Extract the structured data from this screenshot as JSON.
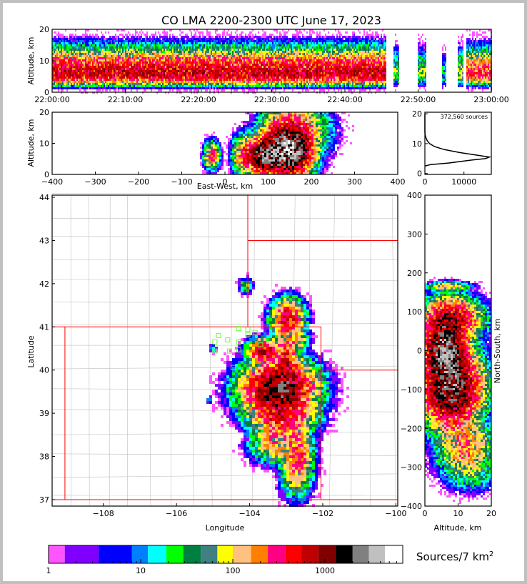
{
  "chart_data": {
    "type": "heatmap",
    "title": "CO LMA 2200-2300 UTC June 17, 2023",
    "time_panel": {
      "ylabel": "Altitude, km",
      "ylim": [
        0,
        20
      ],
      "yticks": [
        "0",
        "10",
        "20"
      ],
      "xticks": [
        "22:00:00",
        "22:10:00",
        "22:20:00",
        "22:30:00",
        "22:40:00",
        "22:50:00",
        "23:00:00"
      ],
      "xlim_minutes": [
        0,
        60
      ],
      "segments": [
        {
          "t0": 0,
          "t1": 45.5,
          "alt": 6,
          "peak": 600
        },
        {
          "t0": 46.6,
          "t1": 47.3,
          "alt": 6,
          "peak": 60
        },
        {
          "t0": 49.8,
          "t1": 51,
          "alt": 6,
          "peak": 60
        },
        {
          "t0": 53.2,
          "t1": 53.8,
          "alt": 5,
          "peak": 20
        },
        {
          "t0": 55.3,
          "t1": 56,
          "alt": 6,
          "peak": 80
        },
        {
          "t0": 56.5,
          "t1": 60,
          "alt": 6,
          "peak": 300
        }
      ]
    },
    "ew_panel": {
      "xlabel": "East-West, km",
      "ylabel": "Altitude, km",
      "xlim": [
        -400,
        400
      ],
      "ylim": [
        0,
        20
      ],
      "xticks": [
        "−400",
        "−300",
        "−200",
        "−100",
        "0",
        "100",
        "200",
        "300",
        "400"
      ],
      "yticks": [
        "0",
        "10",
        "20"
      ],
      "clusters": [
        {
          "x": -30,
          "y": 6,
          "sx": 8,
          "sy": 2,
          "peak": 300
        },
        {
          "x": 45,
          "y": 6,
          "sx": 12,
          "sy": 3,
          "peak": 300
        },
        {
          "x": 90,
          "y": 6,
          "sx": 18,
          "sy": 2.5,
          "peak": 2500
        },
        {
          "x": 145,
          "y": 8,
          "sx": 25,
          "sy": 4,
          "peak": 3500
        },
        {
          "x": 160,
          "y": 14,
          "sx": 35,
          "sy": 4,
          "peak": 250
        }
      ]
    },
    "histogram": {
      "annotation": "372,560 sources",
      "xlim": [
        0,
        17000
      ],
      "ylim": [
        0,
        20
      ],
      "xticks": [
        "0",
        "10000"
      ],
      "yticks": [
        "0",
        "10",
        "20"
      ],
      "alt": [
        2.5,
        3,
        3.5,
        4,
        4.5,
        5,
        5.5,
        6,
        7,
        8,
        9,
        10,
        11,
        12,
        13,
        14,
        20
      ],
      "count": [
        0,
        1500,
        6000,
        9000,
        12000,
        15500,
        16500,
        14000,
        9000,
        5000,
        2500,
        1200,
        600,
        250,
        60,
        0,
        0
      ]
    },
    "plan_panel": {
      "xlabel": "Longitude",
      "ylabel": "Latitude",
      "xlim": [
        -109.4,
        -99.95
      ],
      "ylim": [
        36.85,
        44.05
      ],
      "xticks": [
        "−108",
        "−106",
        "−104",
        "−102",
        "−100"
      ],
      "yticks": [
        "37",
        "38",
        "39",
        "40",
        "41",
        "42",
        "43",
        "44"
      ],
      "clusters": [
        {
          "x": -104.1,
          "y": 41.95,
          "sx": 0.08,
          "sy": 0.08,
          "peak": 80
        },
        {
          "x": -102.95,
          "y": 41.2,
          "sx": 0.2,
          "sy": 0.2,
          "peak": 600
        },
        {
          "x": -103.6,
          "y": 40.45,
          "sx": 0.2,
          "sy": 0.12,
          "peak": 800
        },
        {
          "x": -103.0,
          "y": 40.2,
          "sx": 0.15,
          "sy": 0.3,
          "peak": 500
        },
        {
          "x": -103.2,
          "y": 39.55,
          "sx": 0.45,
          "sy": 0.3,
          "peak": 1500
        },
        {
          "x": -103.1,
          "y": 38.9,
          "sx": 0.4,
          "sy": 0.2,
          "peak": 400
        },
        {
          "x": -103.3,
          "y": 38.3,
          "sx": 0.3,
          "sy": 0.2,
          "peak": 200
        },
        {
          "x": -102.7,
          "y": 38.0,
          "sx": 0.2,
          "sy": 0.4,
          "peak": 300
        },
        {
          "x": -102.7,
          "y": 40.7,
          "sx": 0.15,
          "sy": 0.12,
          "peak": 120
        },
        {
          "x": -105.0,
          "y": 40.5,
          "sx": 0.04,
          "sy": 0.04,
          "peak": 30
        },
        {
          "x": -105.1,
          "y": 39.3,
          "sx": 0.03,
          "sy": 0.05,
          "peak": 20
        }
      ],
      "stations": [
        [
          -104.85,
          40.8
        ],
        [
          -104.6,
          40.7
        ],
        [
          -104.3,
          40.65
        ],
        [
          -104.95,
          40.65
        ],
        [
          -104.3,
          40.47
        ],
        [
          -104.55,
          40.44
        ],
        [
          -104.95,
          40.44
        ],
        [
          -104.45,
          40.06
        ],
        [
          -104.3,
          40.96
        ],
        [
          -104.05,
          40.94
        ],
        [
          -103.85,
          40.87
        ],
        [
          -104.05,
          40.82
        ],
        [
          -103.7,
          40.59
        ]
      ]
    },
    "ns_panel": {
      "xlabel": "Altitude, km",
      "ylabel": "North-South, km",
      "xlim": [
        0,
        20
      ],
      "ylim": [
        -400,
        400
      ],
      "xticks": [
        "0",
        "10",
        "20"
      ],
      "yticks": [
        "−400",
        "−300",
        "−200",
        "−100",
        "0",
        "100",
        "200",
        "300",
        "400"
      ],
      "clusters": [
        {
          "x": 7,
          "y": 165,
          "sx": 3,
          "sy": 6,
          "peak": 150
        },
        {
          "x": 8,
          "y": 80,
          "sx": 4,
          "sy": 25,
          "peak": 800
        },
        {
          "x": 6,
          "y": 0,
          "sx": 3,
          "sy": 40,
          "peak": 2500
        },
        {
          "x": 8,
          "y": -95,
          "sx": 4,
          "sy": 45,
          "peak": 2000
        },
        {
          "x": 12,
          "y": -245,
          "sx": 4,
          "sy": 35,
          "peak": 200
        },
        {
          "x": 14,
          "y": -310,
          "sx": 4,
          "sy": 25,
          "peak": 40
        }
      ]
    },
    "colorbar": {
      "label": "Sources/7 km",
      "label_sup": "2",
      "ticks": [
        "1",
        "10",
        "100",
        "1000"
      ],
      "edges": [
        1,
        1.5,
        3.5,
        8,
        12,
        19,
        29,
        45,
        68,
        100,
        158,
        240,
        370,
        560,
        850,
        1300,
        2000,
        3000,
        4500,
        7000
      ],
      "colors": [
        "#ff55ff",
        "#8000ff",
        "#0000ff",
        "#0080ff",
        "#00ffff",
        "#00ff00",
        "#008040",
        "#408080",
        "#ffff00",
        "#ffc080",
        "#ff8000",
        "#ff0080",
        "#ff0000",
        "#c00000",
        "#800000",
        "#000000",
        "#808080",
        "#c0c0c0",
        "#ffffff"
      ]
    }
  }
}
